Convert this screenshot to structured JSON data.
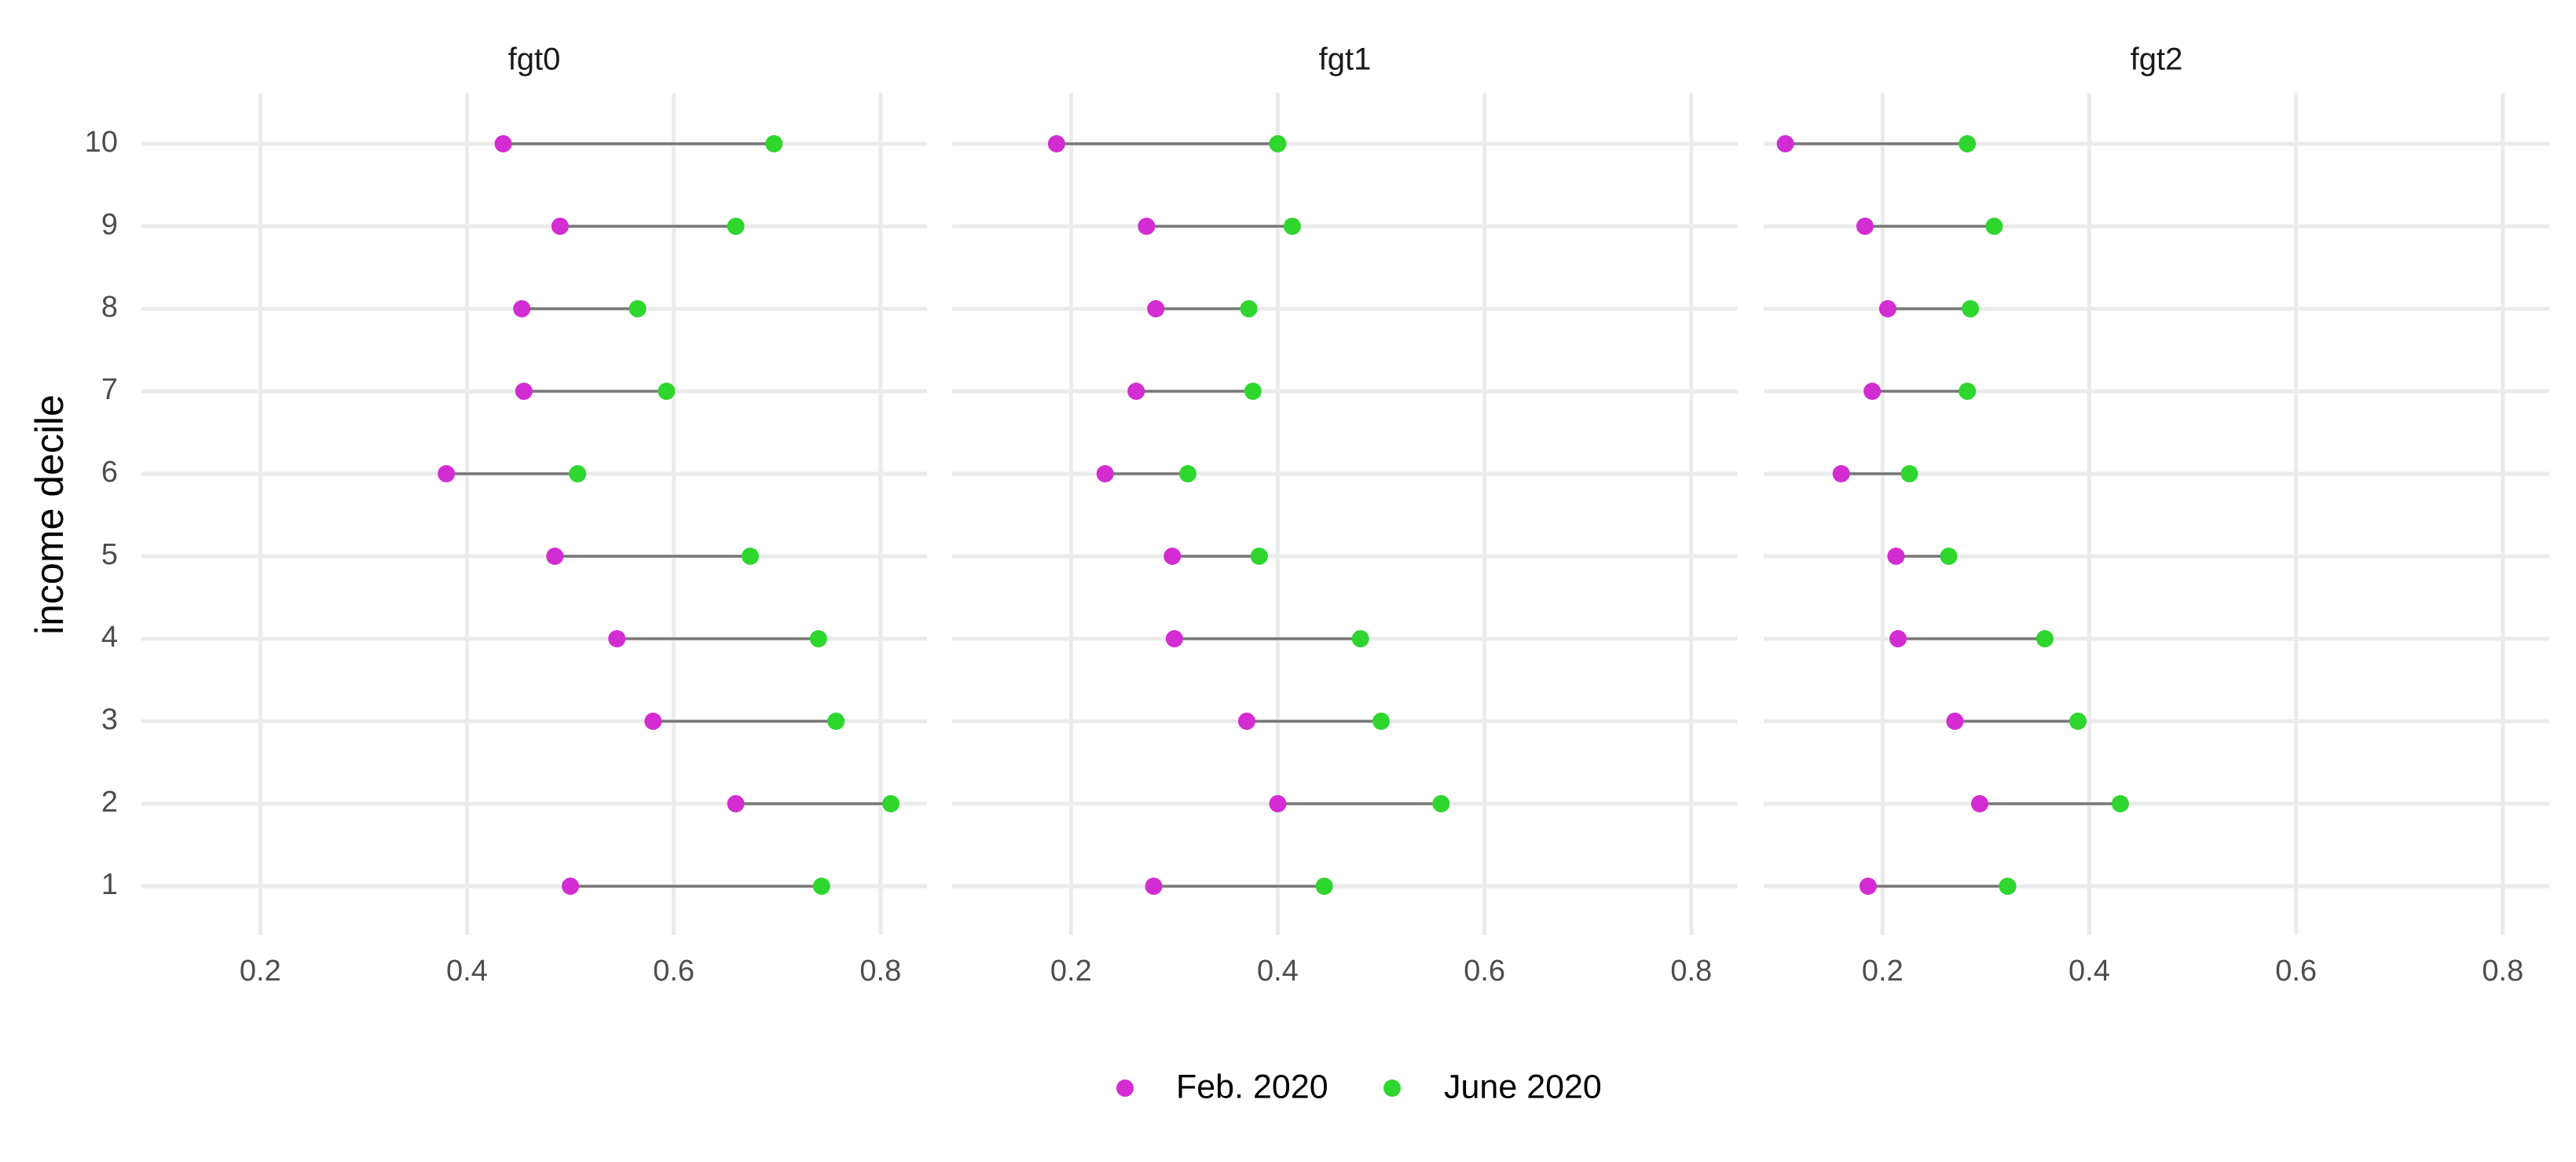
{
  "chart_data": {
    "type": "scatter",
    "subtype": "dumbbell",
    "ylabel": "income decile",
    "xlabel": "",
    "categories": [
      "1",
      "2",
      "3",
      "4",
      "5",
      "6",
      "7",
      "8",
      "9",
      "10"
    ],
    "xlim": [
      0.085,
      0.845
    ],
    "xticks": [
      0.2,
      0.4,
      0.6,
      0.8
    ],
    "xtick_labels": [
      "0.2",
      "0.4",
      "0.6",
      "0.8"
    ],
    "grid": true,
    "legend_position": "bottom",
    "colors": {
      "feb": "#D22CD2",
      "june": "#2ED62E",
      "segment": "#777777",
      "grid": "#EBEBEB"
    },
    "legend": [
      {
        "key": "feb",
        "label": "Feb. 2020"
      },
      {
        "key": "june",
        "label": "June 2020"
      }
    ],
    "facets": [
      {
        "title": "fgt0",
        "feb": [
          0.5,
          0.66,
          0.58,
          0.545,
          0.485,
          0.38,
          0.455,
          0.453,
          0.49,
          0.435
        ],
        "june": [
          0.743,
          0.81,
          0.757,
          0.74,
          0.674,
          0.507,
          0.593,
          0.565,
          0.66,
          0.697
        ]
      },
      {
        "title": "fgt1",
        "feb": [
          0.28,
          0.4,
          0.37,
          0.3,
          0.298,
          0.233,
          0.263,
          0.282,
          0.273,
          0.186
        ],
        "june": [
          0.445,
          0.558,
          0.5,
          0.48,
          0.382,
          0.313,
          0.376,
          0.372,
          0.414,
          0.4
        ]
      },
      {
        "title": "fgt2",
        "feb": [
          0.186,
          0.294,
          0.27,
          0.215,
          0.213,
          0.16,
          0.19,
          0.205,
          0.183,
          0.106
        ],
        "june": [
          0.321,
          0.43,
          0.389,
          0.357,
          0.264,
          0.226,
          0.282,
          0.285,
          0.308,
          0.282
        ]
      }
    ]
  }
}
